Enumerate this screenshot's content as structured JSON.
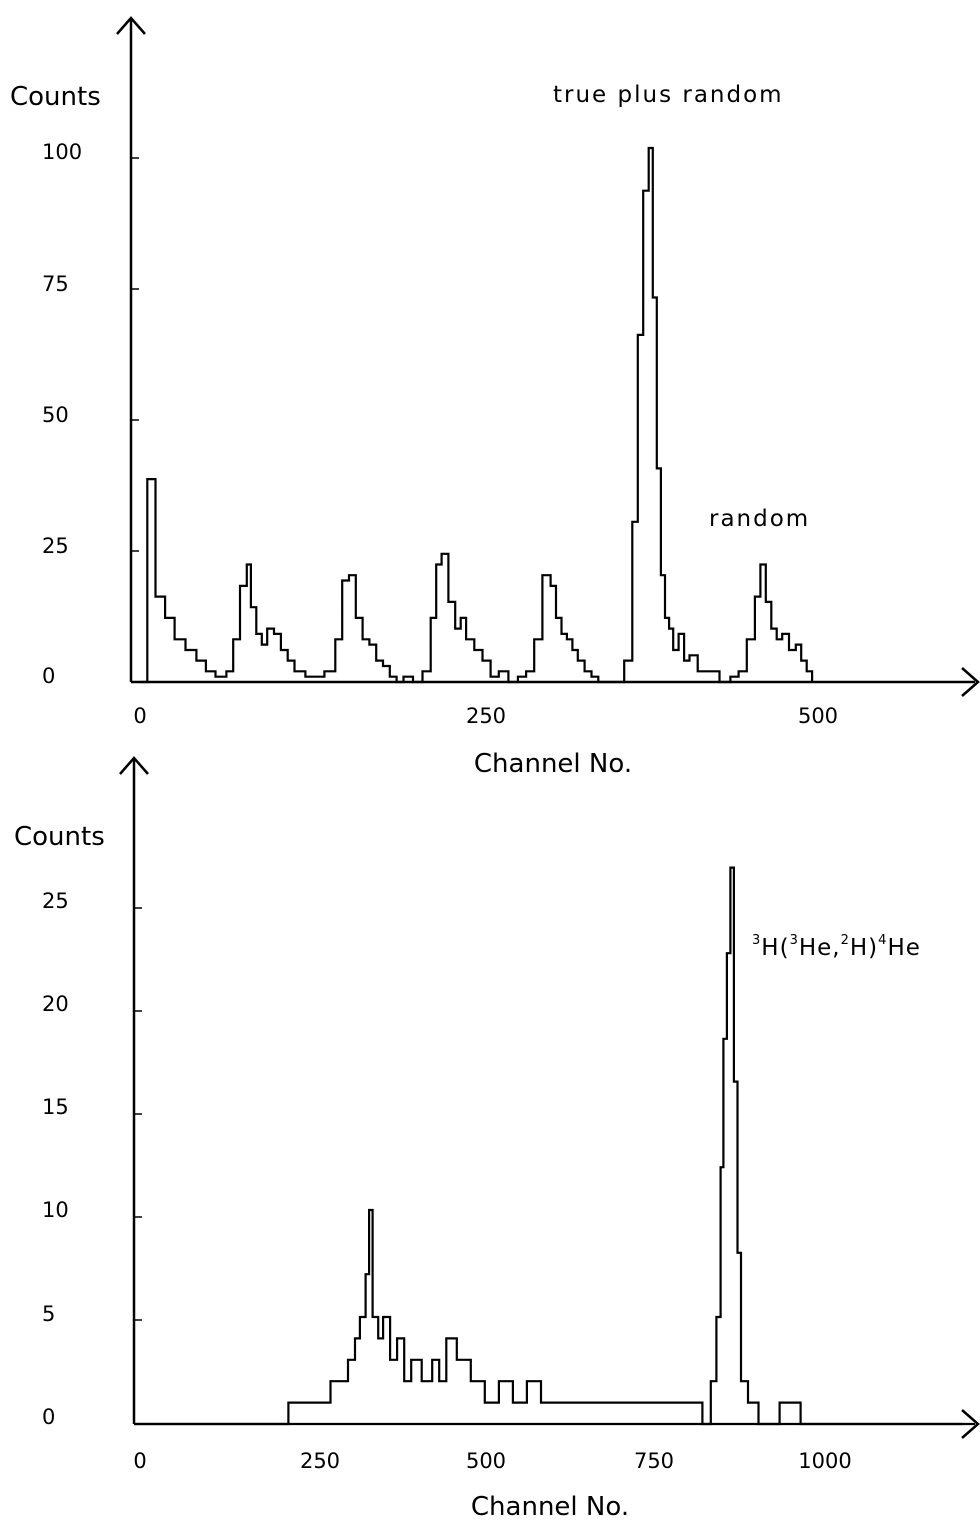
{
  "chart_data": [
    {
      "type": "line",
      "title": "",
      "xlabel": "Channel No.",
      "ylabel": "Counts",
      "xlim": [
        0,
        610
      ],
      "ylim": [
        0,
        100
      ],
      "x_ticks": [
        "0",
        "250",
        "500"
      ],
      "y_ticks": [
        "0",
        "25",
        "50",
        "75",
        "100"
      ],
      "grid": false,
      "annotations": [
        "true plus random",
        "random"
      ],
      "series": [
        {
          "x": [
            7,
            12,
            18,
            25,
            32,
            40,
            48,
            55,
            62,
            70,
            75,
            80,
            85,
            88,
            92,
            96,
            100,
            105,
            110,
            115,
            120,
            128,
            135,
            142,
            150,
            155,
            160,
            165,
            170,
            175,
            180,
            185,
            190,
            195,
            200,
            207,
            214,
            220,
            224,
            228,
            233,
            238,
            242,
            246,
            252,
            258,
            264,
            270,
            277,
            284,
            290,
            296,
            302,
            308,
            312,
            316,
            320,
            324,
            328,
            333,
            338,
            343,
            348,
            355,
            362,
            368,
            372,
            376,
            380,
            383,
            386,
            389,
            392,
            395,
            398,
            402,
            406,
            410,
            416,
            424,
            432,
            440,
            446,
            452,
            458,
            462,
            466,
            470,
            474,
            478,
            483,
            488,
            492,
            496,
            500
          ],
          "y": [
            0,
            38,
            16,
            12,
            8,
            6,
            4,
            2,
            1,
            2,
            8,
            18,
            22,
            14,
            9,
            7,
            10,
            9,
            6,
            4,
            2,
            1,
            1,
            2,
            8,
            19,
            20,
            12,
            8,
            7,
            4,
            3,
            1,
            0,
            1,
            0,
            2,
            12,
            22,
            24,
            15,
            10,
            12,
            8,
            6,
            4,
            1,
            2,
            0,
            1,
            2,
            8,
            20,
            18,
            12,
            9,
            8,
            6,
            4,
            2,
            1,
            0,
            0,
            0,
            4,
            30,
            65,
            92,
            100,
            72,
            40,
            20,
            12,
            10,
            6,
            9,
            4,
            5,
            2,
            2,
            0,
            1,
            2,
            8,
            16,
            22,
            15,
            10,
            8,
            9,
            6,
            7,
            4,
            2,
            0
          ]
        }
      ]
    },
    {
      "type": "line",
      "title": "",
      "xlabel": "Channel No.",
      "ylabel": "Counts",
      "xlim": [
        0,
        1180
      ],
      "ylim": [
        0,
        25
      ],
      "x_ticks": [
        "0",
        "250",
        "500",
        "750",
        "1000"
      ],
      "y_ticks": [
        "0",
        "5",
        "10",
        "15",
        "20",
        "25"
      ],
      "grid": false,
      "annotations": [
        "H(",
        "He,",
        "H)",
        "He"
      ],
      "annotation_superscripts": [
        "3",
        "3",
        "2",
        "4"
      ],
      "series": [
        {
          "x": [
            0,
            210,
            220,
            240,
            260,
            280,
            295,
            305,
            315,
            322,
            330,
            335,
            340,
            348,
            355,
            365,
            375,
            385,
            395,
            410,
            425,
            435,
            445,
            460,
            480,
            500,
            520,
            540,
            560,
            580,
            600,
            630,
            660,
            690,
            720,
            760,
            790,
            810,
            822,
            830,
            836,
            840,
            845,
            850,
            855,
            860,
            865,
            875,
            890,
            920,
            950,
            1000,
            1050,
            1100,
            1180
          ],
          "y": [
            0,
            0,
            1,
            1,
            1,
            2,
            2,
            3,
            4,
            5,
            7,
            10,
            5,
            4,
            5,
            3,
            4,
            2,
            3,
            2,
            3,
            2,
            4,
            3,
            2,
            1,
            2,
            1,
            2,
            1,
            1,
            1,
            1,
            1,
            1,
            1,
            1,
            0,
            2,
            5,
            12,
            18,
            22,
            26,
            16,
            8,
            2,
            1,
            0,
            1,
            0,
            0,
            0,
            0,
            0
          ]
        }
      ]
    }
  ]
}
